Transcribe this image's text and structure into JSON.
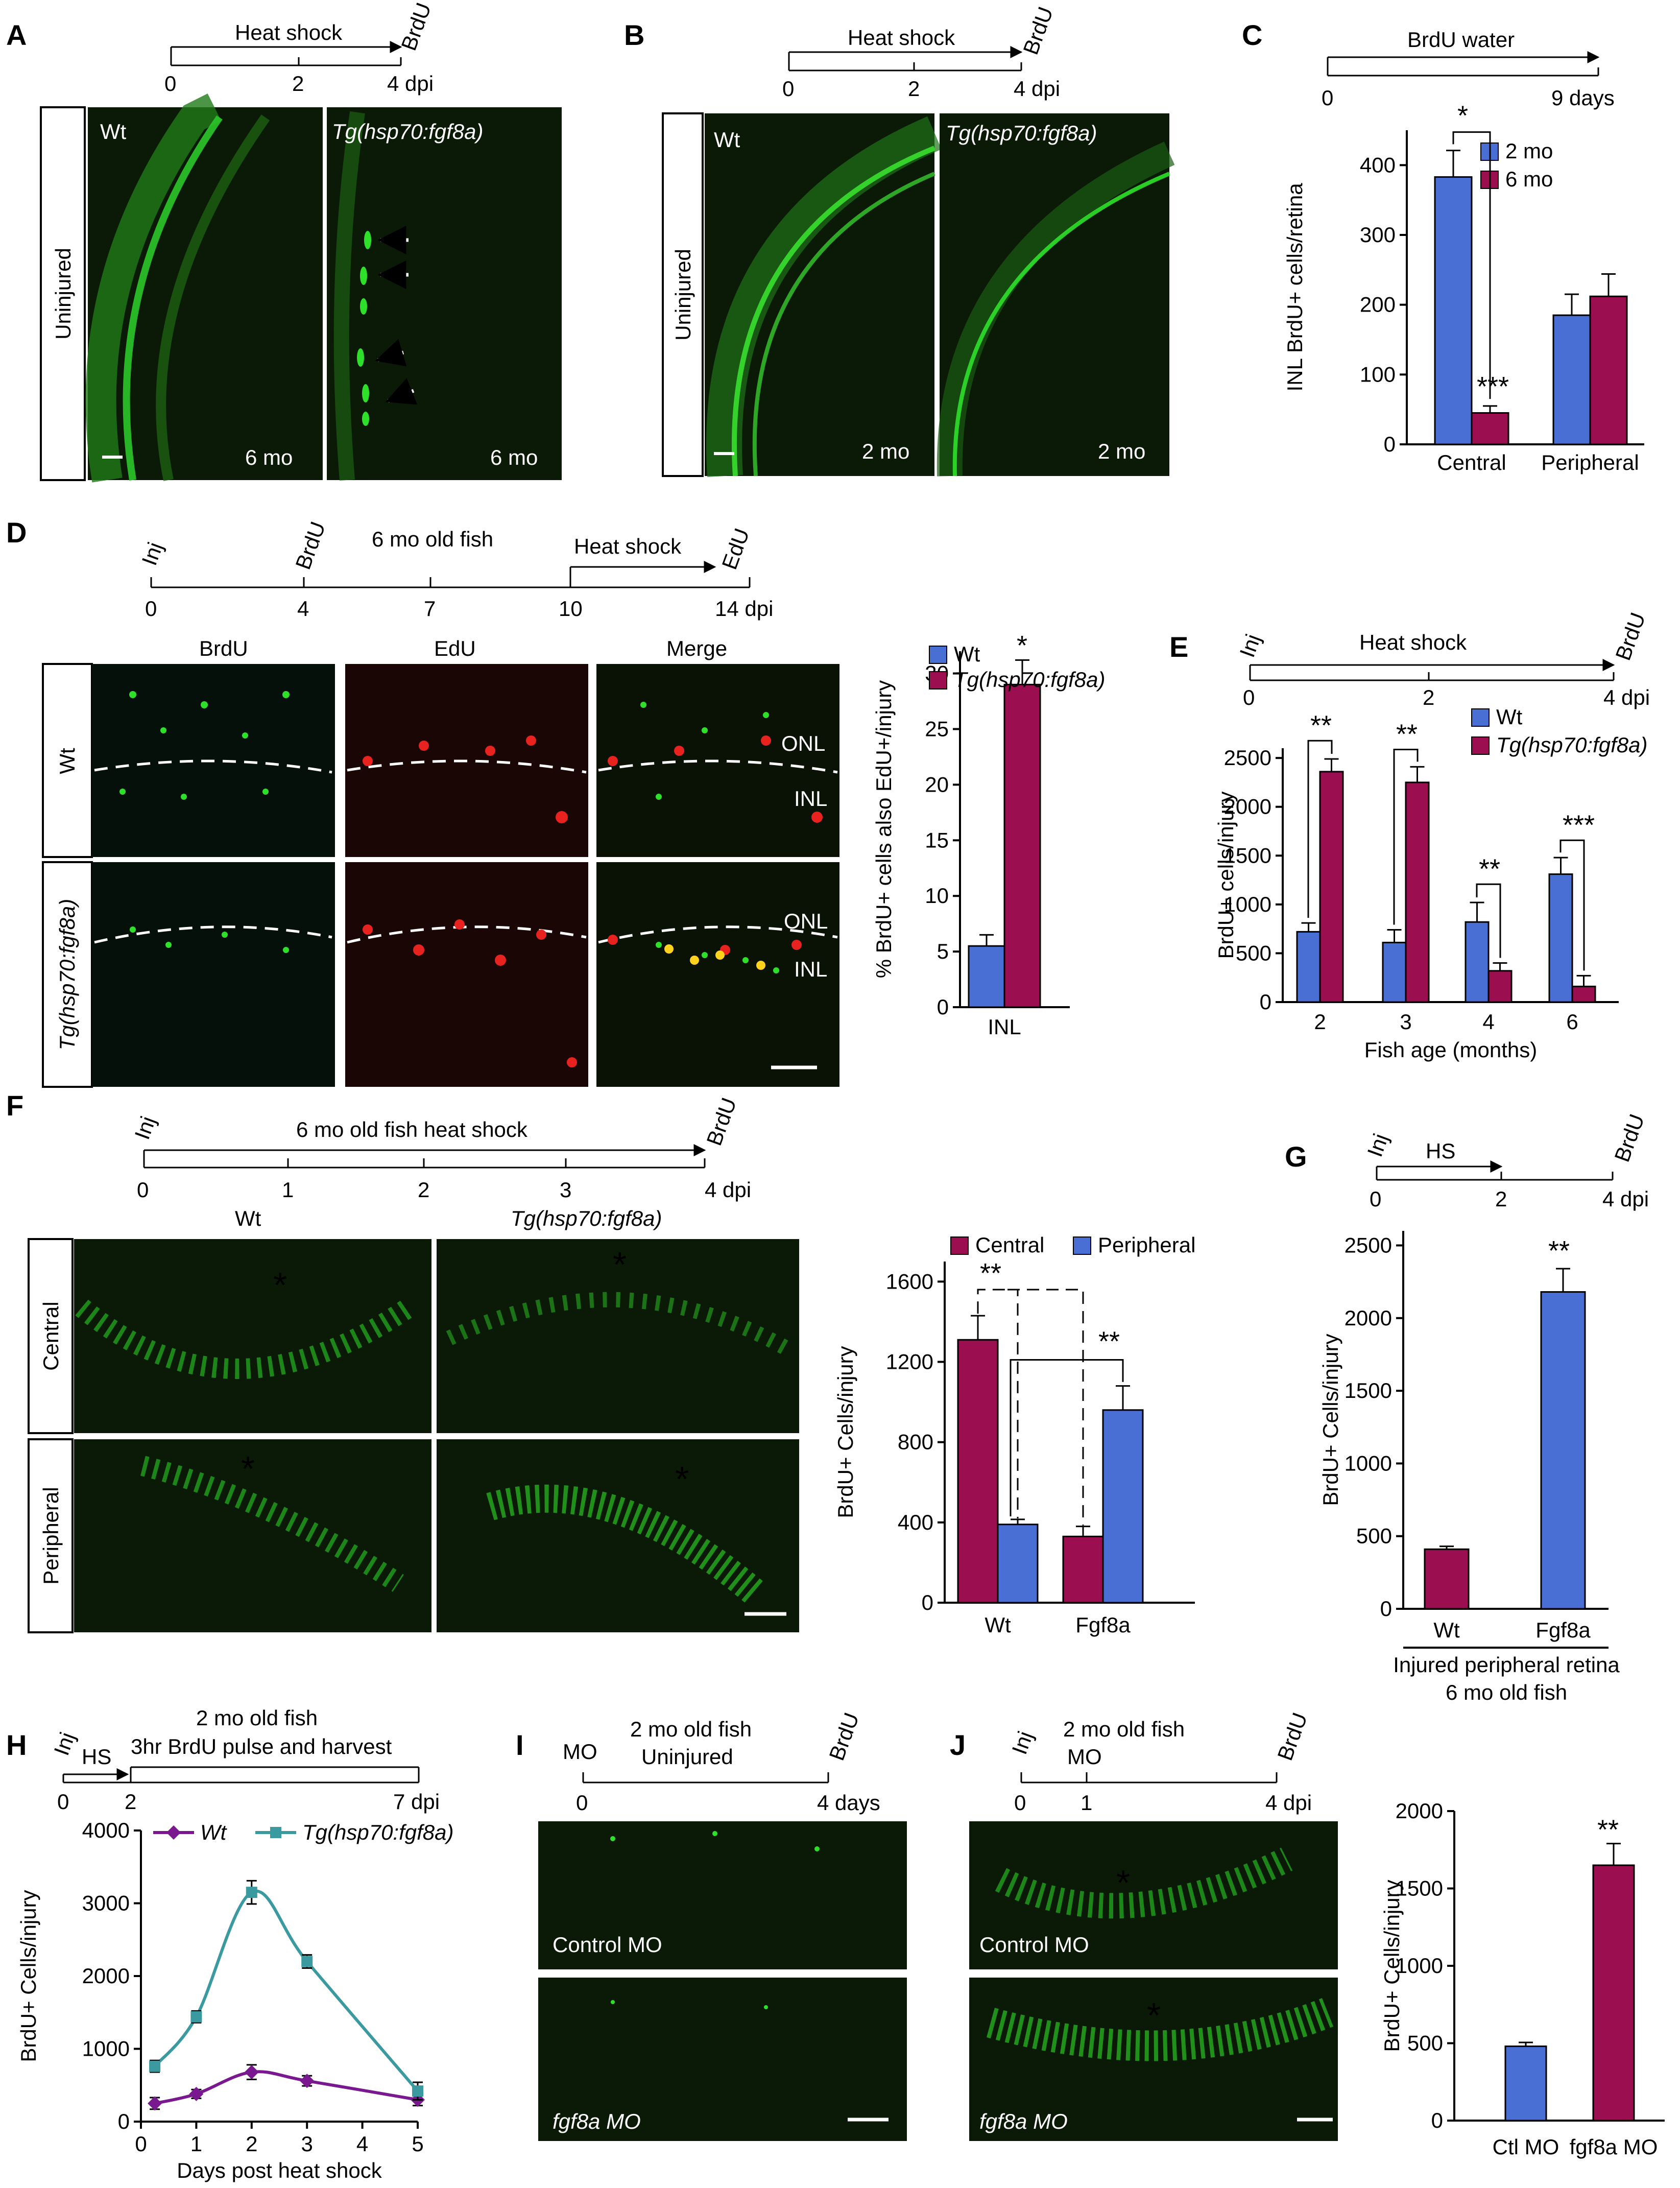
{
  "colors": {
    "blue": "#4a6fd4",
    "maroon": "#9b0e4f",
    "teal": "#3a9aa0",
    "purple": "#7a1890",
    "micro_bg": "#0a1a05",
    "micro_green": "#2ee02a",
    "micro_red": "#e8221e"
  },
  "panels": {
    "A": {
      "letter": "A",
      "tl_top": "Heat shock",
      "tl_end": "BrdU",
      "tl_ticks": [
        "0",
        "2",
        "4 dpi"
      ],
      "side": "Uninjured",
      "img1_label": "Wt",
      "img2_label": "Tg(hsp70:fgf8a)",
      "img1_age": "6 mo",
      "img2_age": "6 mo"
    },
    "B": {
      "letter": "B",
      "tl_top": "Heat shock",
      "tl_end": "BrdU",
      "tl_ticks": [
        "0",
        "2",
        "4 dpi"
      ],
      "side": "Uninjured",
      "img1_label": "Wt",
      "img2_label": "Tg(hsp70:fgf8a)",
      "img1_age": "2 mo",
      "img2_age": "2 mo"
    },
    "C": {
      "letter": "C",
      "tl_top": "BrdU water",
      "tl_ticks": [
        "0",
        "9 days"
      ]
    },
    "D": {
      "letter": "D",
      "tl_top": "6 mo old fish",
      "tl_hs": "Heat shock",
      "tl_labels": [
        "Inj",
        "BrdU",
        "EdU"
      ],
      "tl_ticks": [
        "0",
        "4",
        "7",
        "10",
        "14 dpi"
      ],
      "cols": [
        "BrdU",
        "EdU",
        "Merge"
      ],
      "rows": [
        "Wt",
        "Tg(hsp70:fgf8a)"
      ],
      "layers": [
        "ONL",
        "INL"
      ]
    },
    "E": {
      "letter": "E",
      "tl_top": "Heat shock",
      "tl_labels": [
        "Inj",
        "BrdU"
      ],
      "tl_ticks": [
        "0",
        "2",
        "4 dpi"
      ]
    },
    "F": {
      "letter": "F",
      "tl_top": "6 mo old fish heat shock",
      "tl_labels": [
        "Inj",
        "BrdU"
      ],
      "tl_ticks": [
        "0",
        "1",
        "2",
        "3",
        "4 dpi"
      ],
      "cols": [
        "Wt",
        "Tg(hsp70:fgf8a)"
      ],
      "rows": [
        "Central",
        "Peripheral"
      ]
    },
    "G": {
      "letter": "G",
      "tl_top": "HS",
      "tl_labels": [
        "Inj",
        "BrdU"
      ],
      "tl_ticks": [
        "0",
        "2",
        "4 dpi"
      ],
      "caption1": "Injured peripheral retina",
      "caption2": "6 mo old fish"
    },
    "H": {
      "letter": "H",
      "tl_top1": "2 mo old fish",
      "tl_top2": "3hr BrdU pulse and harvest",
      "tl_hs": "HS",
      "tl_labels": [
        "Inj"
      ],
      "tl_ticks": [
        "0",
        "2",
        "7 dpi"
      ]
    },
    "I": {
      "letter": "I",
      "tl_top1": "2 mo old fish",
      "tl_top2": "Uninjured",
      "tl_labels": [
        "MO",
        "BrdU"
      ],
      "tl_ticks": [
        "0",
        "4 days"
      ],
      "img1_label": "Control MO",
      "img2_label": "fgf8a MO"
    },
    "J": {
      "letter": "J",
      "tl_top": "2 mo old fish",
      "tl_labels": [
        "Inj",
        "MO",
        "BrdU"
      ],
      "tl_ticks": [
        "0",
        "1",
        "4 dpi"
      ],
      "img1_label": "Control MO",
      "img2_label": "fgf8a MO"
    }
  },
  "chart_data": [
    {
      "id": "C",
      "type": "bar",
      "ylabel": "INL BrdU+ cells/retina",
      "categories": [
        "Central",
        "Peripheral"
      ],
      "ylim": [
        0,
        450
      ],
      "yticks": [
        "0",
        "100",
        "200",
        "300",
        "400"
      ],
      "series": [
        {
          "name": "2 mo",
          "color": "#4a6fd4",
          "values": [
            383,
            185
          ],
          "errors": [
            38,
            30
          ]
        },
        {
          "name": "6 mo",
          "color": "#9b0e4f",
          "values": [
            45,
            212
          ],
          "errors": [
            10,
            32
          ]
        }
      ],
      "annotations": [
        "*",
        "***"
      ]
    },
    {
      "id": "D",
      "type": "bar",
      "ylabel": "% BrdU+ cells also EdU+/injury",
      "categories": [
        "INL"
      ],
      "ylim": [
        0,
        32
      ],
      "yticks": [
        "0",
        "5",
        "10",
        "15",
        "20",
        "25",
        "30"
      ],
      "series": [
        {
          "name": "Wt",
          "color": "#4a6fd4",
          "values": [
            5.5
          ],
          "errors": [
            1
          ]
        },
        {
          "name": "Tg(hsp70:fgf8a)",
          "color": "#9b0e4f",
          "values": [
            29
          ],
          "errors": [
            2.2
          ]
        }
      ],
      "annotations": [
        "*"
      ]
    },
    {
      "id": "E",
      "type": "bar",
      "ylabel": "BrdU+ cells/injury",
      "xlabel": "Fish age (months)",
      "categories": [
        "2",
        "3",
        "4",
        "6"
      ],
      "ylim": [
        0,
        2600
      ],
      "yticks": [
        "0",
        "500",
        "1000",
        "1500",
        "2000",
        "2500"
      ],
      "series": [
        {
          "name": "Wt",
          "color": "#4a6fd4",
          "values": [
            720,
            610,
            820,
            1310
          ],
          "errors": [
            90,
            130,
            200,
            170
          ]
        },
        {
          "name": "Tg(hsp70:fgf8a)",
          "color": "#9b0e4f",
          "values": [
            2360,
            2250,
            320,
            160
          ],
          "errors": [
            130,
            160,
            80,
            110
          ]
        }
      ],
      "annotations": [
        "**",
        "**",
        "**",
        "***"
      ]
    },
    {
      "id": "F",
      "type": "bar",
      "ylabel": "BrdU+ Cells/injury",
      "categories": [
        "Wt",
        "Fgf8a"
      ],
      "ylim": [
        0,
        1700
      ],
      "yticks": [
        "0",
        "400",
        "800",
        "1200",
        "1600"
      ],
      "series": [
        {
          "name": "Central",
          "color": "#9b0e4f",
          "values": [
            1310,
            330
          ],
          "errors": [
            120,
            50
          ]
        },
        {
          "name": "Peripheral",
          "color": "#4a6fd4",
          "values": [
            390,
            960
          ],
          "errors": [
            25,
            120
          ]
        }
      ],
      "annotations": [
        "**",
        "**"
      ]
    },
    {
      "id": "G",
      "type": "bar",
      "ylabel": "BrdU+ Cells/injury",
      "categories": [
        "Wt",
        "Fgf8a"
      ],
      "ylim": [
        0,
        2600
      ],
      "yticks": [
        "0",
        "500",
        "1000",
        "1500",
        "2000",
        "2500"
      ],
      "series": [
        {
          "values": [
            410,
            2180
          ],
          "errors": [
            20,
            160
          ],
          "colors": [
            "#9b0e4f",
            "#4a6fd4"
          ]
        }
      ],
      "annotations": [
        "**"
      ]
    },
    {
      "id": "H",
      "type": "line",
      "ylabel": "BrdU+ Cells/injury",
      "xlabel": "Days post heat shock",
      "xlim": [
        0,
        5
      ],
      "ylim": [
        0,
        4000
      ],
      "xticks": [
        "0",
        "1",
        "2",
        "3",
        "4",
        "5"
      ],
      "yticks": [
        "0",
        "1000",
        "2000",
        "3000",
        "4000"
      ],
      "x": [
        0.25,
        1,
        2,
        3,
        5
      ],
      "series": [
        {
          "name": "Wt",
          "color": "#7a1890",
          "values": [
            250,
            380,
            680,
            560,
            300
          ],
          "errors": [
            80,
            60,
            100,
            70,
            80
          ]
        },
        {
          "name": "Tg(hsp70:fgf8a)",
          "color": "#3a9aa0",
          "values": [
            760,
            1440,
            3150,
            2200,
            420
          ],
          "errors": [
            80,
            80,
            160,
            90,
            120
          ]
        }
      ]
    },
    {
      "id": "J",
      "type": "bar",
      "ylabel": "BrdU+ Cells/injury",
      "categories": [
        "Ctl MO",
        "fgf8a MO"
      ],
      "ylim": [
        0,
        2000
      ],
      "yticks": [
        "0",
        "500",
        "1000",
        "1500",
        "2000"
      ],
      "series": [
        {
          "values": [
            480,
            1650
          ],
          "errors": [
            25,
            140
          ],
          "colors": [
            "#4a6fd4",
            "#9b0e4f"
          ]
        }
      ],
      "annotations": [
        "**"
      ]
    }
  ]
}
